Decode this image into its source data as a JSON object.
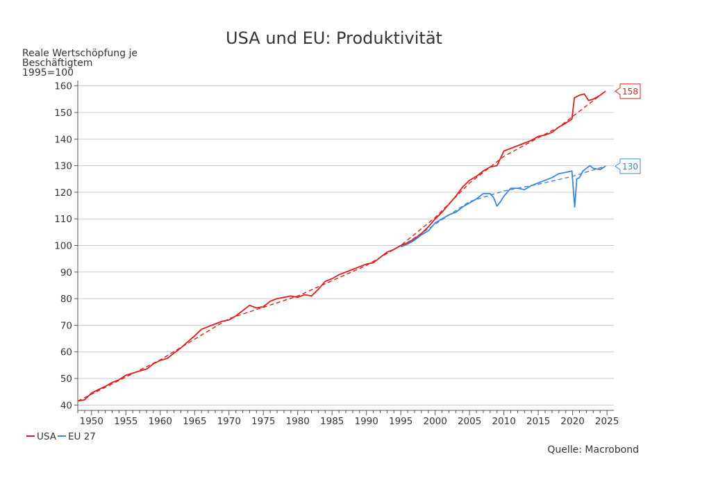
{
  "chart_data": {
    "type": "line",
    "title": "USA und EU: Produktivität",
    "ylabel": [
      "Reale Wertschöpfung je",
      "Beschäftigtem",
      "1995=100"
    ],
    "xlabel": "",
    "xlim": [
      1948,
      2026
    ],
    "ylim": [
      38,
      162
    ],
    "x_ticks": [
      1950,
      1955,
      1960,
      1965,
      1970,
      1975,
      1980,
      1985,
      1990,
      1995,
      2000,
      2005,
      2010,
      2015,
      2020,
      2025
    ],
    "y_ticks": [
      40,
      50,
      60,
      70,
      80,
      90,
      100,
      110,
      120,
      130,
      140,
      150,
      160
    ],
    "grid": "horizontal",
    "legend_position": "bottom-left",
    "source": "Quelle: Macrobond",
    "series": [
      {
        "name": "USA",
        "color": "#e01b1b",
        "end_label": "158",
        "points": [
          [
            1948,
            41.5
          ],
          [
            1949,
            42.0
          ],
          [
            1950,
            44.5
          ],
          [
            1951,
            45.8
          ],
          [
            1952,
            47.0
          ],
          [
            1953,
            48.5
          ],
          [
            1954,
            49.5
          ],
          [
            1955,
            51.2
          ],
          [
            1956,
            52.0
          ],
          [
            1957,
            52.8
          ],
          [
            1958,
            53.5
          ],
          [
            1959,
            55.5
          ],
          [
            1960,
            56.8
          ],
          [
            1961,
            57.5
          ],
          [
            1962,
            59.5
          ],
          [
            1963,
            61.5
          ],
          [
            1964,
            63.8
          ],
          [
            1965,
            66.0
          ],
          [
            1966,
            68.5
          ],
          [
            1967,
            69.5
          ],
          [
            1968,
            70.5
          ],
          [
            1969,
            71.5
          ],
          [
            1970,
            72.0
          ],
          [
            1971,
            73.5
          ],
          [
            1972,
            75.5
          ],
          [
            1973,
            77.5
          ],
          [
            1974,
            76.5
          ],
          [
            1975,
            77.0
          ],
          [
            1976,
            79.0
          ],
          [
            1977,
            80.0
          ],
          [
            1978,
            80.5
          ],
          [
            1979,
            81.0
          ],
          [
            1980,
            80.5
          ],
          [
            1981,
            81.5
          ],
          [
            1982,
            81.0
          ],
          [
            1983,
            83.5
          ],
          [
            1984,
            86.5
          ],
          [
            1985,
            87.5
          ],
          [
            1986,
            89.0
          ],
          [
            1987,
            90.0
          ],
          [
            1988,
            91.0
          ],
          [
            1989,
            92.0
          ],
          [
            1990,
            93.0
          ],
          [
            1991,
            93.5
          ],
          [
            1992,
            95.5
          ],
          [
            1993,
            97.5
          ],
          [
            1994,
            98.5
          ],
          [
            1995,
            100.0
          ],
          [
            1996,
            101.0
          ],
          [
            1997,
            102.5
          ],
          [
            1998,
            104.5
          ],
          [
            1999,
            107.0
          ],
          [
            2000,
            110.0
          ],
          [
            2001,
            112.5
          ],
          [
            2002,
            115.5
          ],
          [
            2003,
            118.5
          ],
          [
            2004,
            122.0
          ],
          [
            2005,
            124.5
          ],
          [
            2006,
            126.0
          ],
          [
            2007,
            128.0
          ],
          [
            2008,
            129.5
          ],
          [
            2009,
            130.0
          ],
          [
            2010,
            135.5
          ],
          [
            2011,
            136.5
          ],
          [
            2012,
            137.5
          ],
          [
            2013,
            138.5
          ],
          [
            2014,
            139.5
          ],
          [
            2015,
            141.0
          ],
          [
            2016,
            141.5
          ],
          [
            2017,
            142.5
          ],
          [
            2018,
            144.5
          ],
          [
            2019,
            146.0
          ],
          [
            2019.9,
            147.5
          ],
          [
            2020.25,
            155.5
          ],
          [
            2021,
            156.5
          ],
          [
            2021.7,
            157.0
          ],
          [
            2022.3,
            154.5
          ],
          [
            2023,
            155.0
          ],
          [
            2024,
            156.5
          ],
          [
            2024.8,
            158.0
          ]
        ]
      },
      {
        "name": "EU 27",
        "color": "#3b86db",
        "end_label": "130",
        "points": [
          [
            1995,
            99.5
          ],
          [
            1996,
            100.5
          ],
          [
            1997,
            102.0
          ],
          [
            1998,
            104.0
          ],
          [
            1999,
            105.5
          ],
          [
            2000,
            108.5
          ],
          [
            2001,
            110.0
          ],
          [
            2002,
            111.5
          ],
          [
            2003,
            112.5
          ],
          [
            2004,
            114.5
          ],
          [
            2005,
            116.0
          ],
          [
            2006,
            117.5
          ],
          [
            2007,
            119.5
          ],
          [
            2008,
            119.5
          ],
          [
            2008.5,
            118.0
          ],
          [
            2009,
            114.8
          ],
          [
            2009.5,
            116.5
          ],
          [
            2010,
            118.5
          ],
          [
            2011,
            121.5
          ],
          [
            2012,
            121.5
          ],
          [
            2013,
            121.0
          ],
          [
            2014,
            122.5
          ],
          [
            2015,
            123.5
          ],
          [
            2016,
            124.5
          ],
          [
            2017,
            125.5
          ],
          [
            2018,
            127.0
          ],
          [
            2019,
            127.5
          ],
          [
            2019.9,
            128.0
          ],
          [
            2020.3,
            114.5
          ],
          [
            2020.6,
            125.0
          ],
          [
            2021,
            125.5
          ],
          [
            2021.5,
            128.0
          ],
          [
            2022,
            129.0
          ],
          [
            2022.5,
            130.0
          ],
          [
            2023,
            129.0
          ],
          [
            2024,
            128.5
          ],
          [
            2024.8,
            129.8
          ]
        ]
      }
    ],
    "trend_lines": [
      {
        "series": "USA",
        "color": "#e01b1b",
        "points": [
          [
            1948,
            41.5
          ],
          [
            1960,
            57.0
          ],
          [
            1970,
            72.5
          ],
          [
            1980,
            81.0
          ],
          [
            1990,
            92.5
          ],
          [
            1995,
            100.0
          ],
          [
            2000,
            110.5
          ],
          [
            2005,
            123.5
          ],
          [
            2010,
            133.5
          ],
          [
            2015,
            140.5
          ],
          [
            2018,
            144.5
          ],
          [
            2024.8,
            158.0
          ]
        ]
      },
      {
        "series": "EU 27",
        "color": "#3b86db",
        "points": [
          [
            1995,
            99.5
          ],
          [
            2000,
            108.0
          ],
          [
            2005,
            116.5
          ],
          [
            2010,
            120.5
          ],
          [
            2015,
            123.0
          ],
          [
            2020,
            126.0
          ],
          [
            2024.8,
            129.8
          ]
        ]
      }
    ]
  }
}
